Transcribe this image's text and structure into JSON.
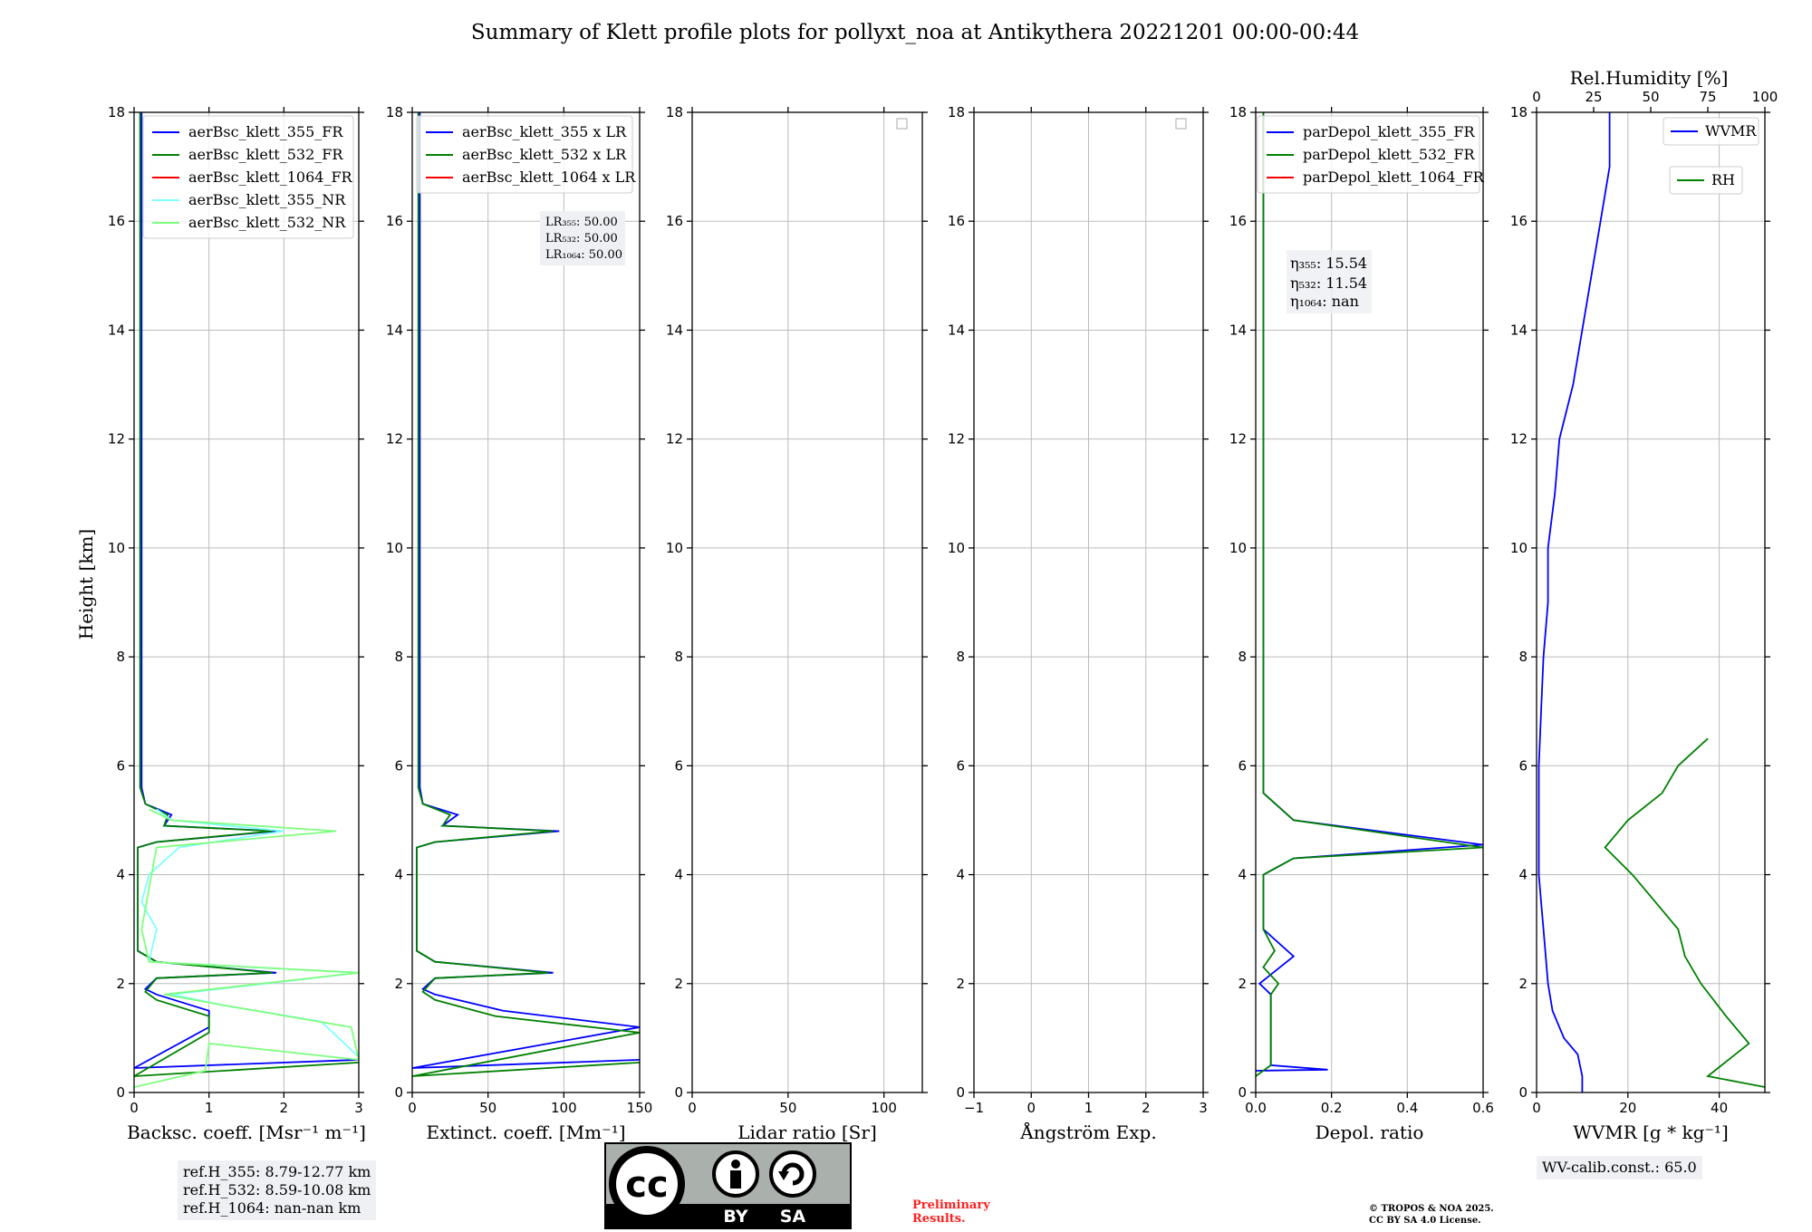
{
  "title": "Summary of Klett profile plots for pollyxt_noa at Antikythera 20221201 00:00-00:44",
  "y_axis_label": "Height [km]",
  "colors": {
    "c355": "#0000ff",
    "c532": "#008000",
    "c1064": "#ff0000",
    "c355nr": "#7fffff",
    "c532nr": "#7fff7f",
    "grid": "#bbbbbb"
  },
  "panels": [
    {
      "xlabel": "Backsc. coeff. [Msr⁻¹ m⁻¹]",
      "xticks": [
        "0",
        "1",
        "2",
        "3"
      ],
      "legend": [
        "aerBsc_klett_355_FR",
        "aerBsc_klett_532_FR",
        "aerBsc_klett_1064_FR",
        "aerBsc_klett_355_NR",
        "aerBsc_klett_532_NR"
      ]
    },
    {
      "xlabel": "Extinct. coeff. [Mm⁻¹]",
      "xticks": [
        "0",
        "50",
        "100",
        "150"
      ],
      "legend": [
        "aerBsc_klett_355 x LR",
        "aerBsc_klett_532 x LR",
        "aerBsc_klett_1064 x LR"
      ],
      "lr_box": [
        "LR₃₅₅: 50.00",
        "LR₅₃₂: 50.00",
        "LR₁₀₆₄: 50.00"
      ]
    },
    {
      "xlabel": "Lidar ratio [Sr]",
      "xticks": [
        "0",
        "50",
        "100"
      ]
    },
    {
      "xlabel": "Ångström Exp.",
      "xticks": [
        "−1",
        "0",
        "1",
        "2",
        "3"
      ]
    },
    {
      "xlabel": "Depol. ratio",
      "xticks": [
        "0.0",
        "0.2",
        "0.4",
        "0.6"
      ],
      "legend": [
        "parDepol_klett_355_FR",
        "parDepol_klett_532_FR",
        "parDepol_klett_1064_FR"
      ],
      "eta_box": [
        "η₃₅₅: 15.54",
        "η₅₃₂: 11.54",
        "η₁₀₆₄: nan"
      ]
    },
    {
      "xlabel": "WVMR [g * kg⁻¹]",
      "xticks": [
        "0",
        "20",
        "40"
      ],
      "top_label": "Rel.Humidity [%]",
      "top_ticks": [
        "0",
        "25",
        "50",
        "75",
        "100"
      ],
      "legend": [
        "WVMR",
        "RH"
      ]
    }
  ],
  "y_ticks": [
    "0",
    "2",
    "4",
    "6",
    "8",
    "10",
    "12",
    "14",
    "16",
    "18"
  ],
  "ref_box": [
    "ref.H_355: 8.79-12.77 km",
    "ref.H_532: 8.59-10.08 km",
    "ref.H_1064: nan-nan km"
  ],
  "wv_calib": "WV-calib.const.: 65.0",
  "preliminary": [
    "Preliminary",
    "Results."
  ],
  "copyright": [
    "© TROPOS & NOA 2025.",
    "CC BY SA 4.0 License."
  ],
  "cc_logo": {
    "cc": "cc",
    "by": "BY",
    "sa": "SA"
  },
  "chart_data": [
    {
      "type": "line",
      "xlabel": "Backsc. coeff. [Msr⁻¹ m⁻¹]",
      "ylabel": "Height [km]",
      "xlim": [
        0,
        3
      ],
      "ylim": [
        0,
        18
      ],
      "grid": true,
      "legend_position": "top-right",
      "series": [
        {
          "name": "aerBsc_klett_355_FR",
          "points": [
            [
              3.0,
              0.6
            ],
            [
              0.0,
              0.45
            ],
            [
              1.0,
              1.2
            ],
            [
              1.0,
              1.5
            ],
            [
              0.3,
              1.8
            ],
            [
              0.15,
              1.9
            ],
            [
              0.3,
              2.1
            ],
            [
              1.9,
              2.2
            ],
            [
              0.3,
              2.4
            ],
            [
              0.05,
              2.6
            ],
            [
              0.05,
              4.5
            ],
            [
              0.3,
              4.6
            ],
            [
              1.9,
              4.8
            ],
            [
              0.4,
              4.9
            ],
            [
              0.5,
              5.1
            ],
            [
              0.15,
              5.3
            ],
            [
              0.1,
              5.6
            ],
            [
              0.1,
              18.0
            ]
          ]
        },
        {
          "name": "aerBsc_klett_532_FR",
          "points": [
            [
              3.0,
              0.55
            ],
            [
              0.0,
              0.3
            ],
            [
              1.0,
              1.1
            ],
            [
              1.0,
              1.4
            ],
            [
              0.3,
              1.7
            ],
            [
              0.15,
              1.85
            ],
            [
              0.3,
              2.1
            ],
            [
              1.85,
              2.2
            ],
            [
              0.3,
              2.4
            ],
            [
              0.05,
              2.6
            ],
            [
              0.05,
              4.5
            ],
            [
              0.3,
              4.6
            ],
            [
              1.85,
              4.8
            ],
            [
              0.4,
              4.9
            ],
            [
              0.45,
              5.1
            ],
            [
              0.15,
              5.3
            ],
            [
              0.08,
              5.6
            ],
            [
              0.08,
              18.0
            ]
          ]
        },
        {
          "name": "aerBsc_klett_355_NR",
          "points": [
            [
              3.0,
              0.65
            ],
            [
              2.5,
              1.3
            ],
            [
              1.2,
              1.6
            ],
            [
              0.5,
              1.8
            ],
            [
              3.0,
              2.2
            ],
            [
              0.2,
              2.4
            ],
            [
              0.3,
              3.0
            ],
            [
              0.1,
              3.5
            ],
            [
              0.2,
              4.0
            ],
            [
              0.6,
              4.5
            ],
            [
              2.0,
              4.8
            ],
            [
              0.5,
              5.0
            ],
            [
              0.3,
              5.2
            ]
          ]
        },
        {
          "name": "aerBsc_klett_532_NR",
          "points": [
            [
              0.0,
              0.1
            ],
            [
              0.95,
              0.4
            ],
            [
              1.0,
              0.9
            ],
            [
              3.0,
              0.6
            ],
            [
              2.9,
              1.2
            ],
            [
              1.2,
              1.6
            ],
            [
              0.4,
              1.8
            ],
            [
              3.0,
              2.2
            ],
            [
              0.2,
              2.4
            ],
            [
              0.1,
              3.0
            ],
            [
              0.3,
              4.5
            ],
            [
              2.7,
              4.8
            ],
            [
              0.5,
              5.0
            ],
            [
              0.2,
              5.2
            ]
          ]
        }
      ]
    },
    {
      "type": "line",
      "xlabel": "Extinct. coeff. [Mm⁻¹]",
      "ylabel": "Height [km]",
      "xlim": [
        0,
        150
      ],
      "ylim": [
        0,
        18
      ],
      "grid": true,
      "legend_position": "top-left",
      "series": [
        {
          "name": "aerBsc_klett_355 x LR",
          "points": [
            [
              150,
              0.6
            ],
            [
              0,
              0.45
            ],
            [
              150,
              1.2
            ],
            [
              60,
              1.5
            ],
            [
              15,
              1.8
            ],
            [
              7,
              1.9
            ],
            [
              15,
              2.1
            ],
            [
              93,
              2.2
            ],
            [
              15,
              2.4
            ],
            [
              3,
              2.6
            ],
            [
              3,
              4.5
            ],
            [
              15,
              4.6
            ],
            [
              97,
              4.8
            ],
            [
              20,
              4.9
            ],
            [
              30,
              5.1
            ],
            [
              7,
              5.3
            ],
            [
              5,
              5.6
            ],
            [
              5,
              18.0
            ]
          ]
        },
        {
          "name": "aerBsc_klett_532 x LR",
          "points": [
            [
              150,
              0.55
            ],
            [
              0,
              0.3
            ],
            [
              150,
              1.1
            ],
            [
              55,
              1.4
            ],
            [
              15,
              1.7
            ],
            [
              7,
              1.85
            ],
            [
              15,
              2.1
            ],
            [
              90,
              2.2
            ],
            [
              15,
              2.4
            ],
            [
              3,
              2.6
            ],
            [
              3,
              4.5
            ],
            [
              15,
              4.6
            ],
            [
              93,
              4.8
            ],
            [
              20,
              4.9
            ],
            [
              25,
              5.1
            ],
            [
              7,
              5.3
            ],
            [
              4,
              5.6
            ],
            [
              4,
              18.0
            ]
          ]
        }
      ]
    },
    {
      "type": "line",
      "xlabel": "Lidar ratio [Sr]",
      "xlim": [
        0,
        120
      ],
      "ylim": [
        0,
        18
      ],
      "grid": true,
      "series": []
    },
    {
      "type": "line",
      "xlabel": "Ångström Exp.",
      "xlim": [
        -1,
        3
      ],
      "ylim": [
        0,
        18
      ],
      "grid": true,
      "series": []
    },
    {
      "type": "line",
      "xlabel": "Depol. ratio",
      "xlim": [
        0.0,
        0.6
      ],
      "ylim": [
        0,
        18
      ],
      "grid": true,
      "legend_position": "top-left",
      "series": [
        {
          "name": "parDepol_klett_355_FR",
          "points": [
            [
              0.0,
              0.4
            ],
            [
              0.19,
              0.42
            ],
            [
              0.04,
              0.5
            ],
            [
              0.04,
              1.8
            ],
            [
              0.01,
              2.0
            ],
            [
              0.1,
              2.5
            ],
            [
              0.02,
              3.0
            ],
            [
              0.02,
              4.0
            ],
            [
              0.1,
              4.3
            ],
            [
              0.6,
              4.55
            ],
            [
              0.1,
              5.0
            ],
            [
              0.02,
              5.5
            ],
            [
              0.02,
              18.0
            ]
          ]
        },
        {
          "name": "parDepol_klett_532_FR",
          "points": [
            [
              0.0,
              0.3
            ],
            [
              0.04,
              0.5
            ],
            [
              0.04,
              1.8
            ],
            [
              0.06,
              2.0
            ],
            [
              0.02,
              2.3
            ],
            [
              0.05,
              2.6
            ],
            [
              0.02,
              3.0
            ],
            [
              0.02,
              4.0
            ],
            [
              0.1,
              4.3
            ],
            [
              0.6,
              4.5
            ],
            [
              0.1,
              5.0
            ],
            [
              0.02,
              5.5
            ],
            [
              0.02,
              18.0
            ]
          ]
        }
      ]
    },
    {
      "type": "line",
      "xlabel": "WVMR [g * kg⁻¹]",
      "xlim": [
        0,
        50
      ],
      "ylim": [
        0,
        18
      ],
      "grid": true,
      "x2label": "Rel.Humidity [%]",
      "x2lim": [
        0,
        100
      ],
      "legend_position": "top-right",
      "series": [
        {
          "name": "WVMR",
          "points": [
            [
              10,
              0.0
            ],
            [
              10,
              0.3
            ],
            [
              9,
              0.7
            ],
            [
              6,
              1.0
            ],
            [
              3.5,
              1.5
            ],
            [
              2.5,
              2.0
            ],
            [
              2,
              2.5
            ],
            [
              1.5,
              3.0
            ],
            [
              1,
              3.5
            ],
            [
              0.5,
              4.0
            ],
            [
              0.5,
              5.0
            ],
            [
              0.5,
              6.0
            ],
            [
              1,
              7.0
            ],
            [
              1.5,
              8.0
            ],
            [
              2.5,
              9.0
            ],
            [
              2.5,
              10.0
            ],
            [
              4,
              11.0
            ],
            [
              5,
              12.0
            ],
            [
              8,
              13.0
            ],
            [
              10,
              14.0
            ],
            [
              12,
              15.0
            ],
            [
              14,
              16.0
            ],
            [
              16,
              17.0
            ],
            [
              16,
              18.0
            ]
          ]
        },
        {
          "name": "RH",
          "points": [
            [
              100,
              0.1
            ],
            [
              75,
              0.3
            ],
            [
              93,
              0.9
            ],
            [
              83,
              1.4
            ],
            [
              72,
              2.0
            ],
            [
              65,
              2.5
            ],
            [
              62,
              3.0
            ],
            [
              52,
              3.5
            ],
            [
              42,
              4.0
            ],
            [
              30,
              4.5
            ],
            [
              40,
              5.0
            ],
            [
              55,
              5.5
            ],
            [
              62,
              6.0
            ],
            [
              75,
              6.5
            ]
          ]
        }
      ]
    }
  ]
}
